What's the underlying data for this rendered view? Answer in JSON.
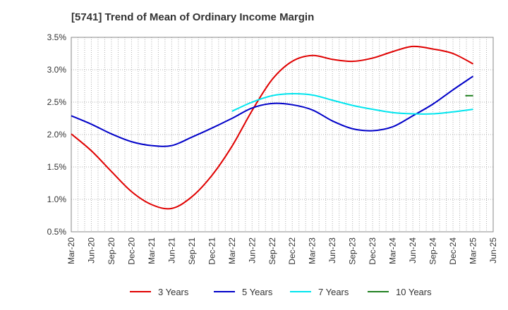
{
  "chart_data": {
    "type": "line",
    "title": "[5741]  Trend of Mean of Ordinary Income Margin",
    "xlabel": "",
    "ylabel": "",
    "ylim": [
      0.5,
      3.5
    ],
    "yticks": [
      "0.5%",
      "1.0%",
      "1.5%",
      "2.0%",
      "2.5%",
      "3.0%",
      "3.5%"
    ],
    "ytick_values": [
      0.5,
      1.0,
      1.5,
      2.0,
      2.5,
      3.0,
      3.5
    ],
    "x_categories": [
      "Mar-20",
      "Jun-20",
      "Sep-20",
      "Dec-20",
      "Mar-21",
      "Jun-21",
      "Sep-21",
      "Dec-21",
      "Mar-22",
      "Jun-22",
      "Sep-22",
      "Dec-22",
      "Mar-23",
      "Jun-23",
      "Sep-23",
      "Dec-23",
      "Mar-24",
      "Jun-24",
      "Sep-24",
      "Dec-24",
      "Mar-25",
      "Jun-25"
    ],
    "grid": true,
    "legend_position": "bottom",
    "series": [
      {
        "name": "3 Years",
        "color": "#e00000",
        "values": [
          2.01,
          1.75,
          1.43,
          1.12,
          0.92,
          0.86,
          1.04,
          1.37,
          1.82,
          2.37,
          2.85,
          3.13,
          3.22,
          3.16,
          3.13,
          3.18,
          3.28,
          3.36,
          3.32,
          3.25,
          3.09,
          null
        ]
      },
      {
        "name": "5 Years",
        "color": "#0000c8",
        "values": [
          2.29,
          2.16,
          2.01,
          1.89,
          1.83,
          1.83,
          1.96,
          2.1,
          2.25,
          2.41,
          2.48,
          2.46,
          2.38,
          2.21,
          2.09,
          2.06,
          2.12,
          2.29,
          2.47,
          2.69,
          2.9,
          null
        ]
      },
      {
        "name": "7 Years",
        "color": "#00e5ee",
        "values": [
          null,
          null,
          null,
          null,
          null,
          null,
          null,
          null,
          2.36,
          2.5,
          2.6,
          2.63,
          2.61,
          2.53,
          2.45,
          2.39,
          2.34,
          2.32,
          2.32,
          2.35,
          2.39,
          null
        ]
      },
      {
        "name": "10 Years",
        "color": "#208020",
        "values": [
          null,
          null,
          null,
          null,
          null,
          null,
          null,
          null,
          null,
          null,
          null,
          null,
          null,
          null,
          null,
          null,
          null,
          null,
          null,
          null,
          2.6,
          null
        ]
      }
    ]
  }
}
